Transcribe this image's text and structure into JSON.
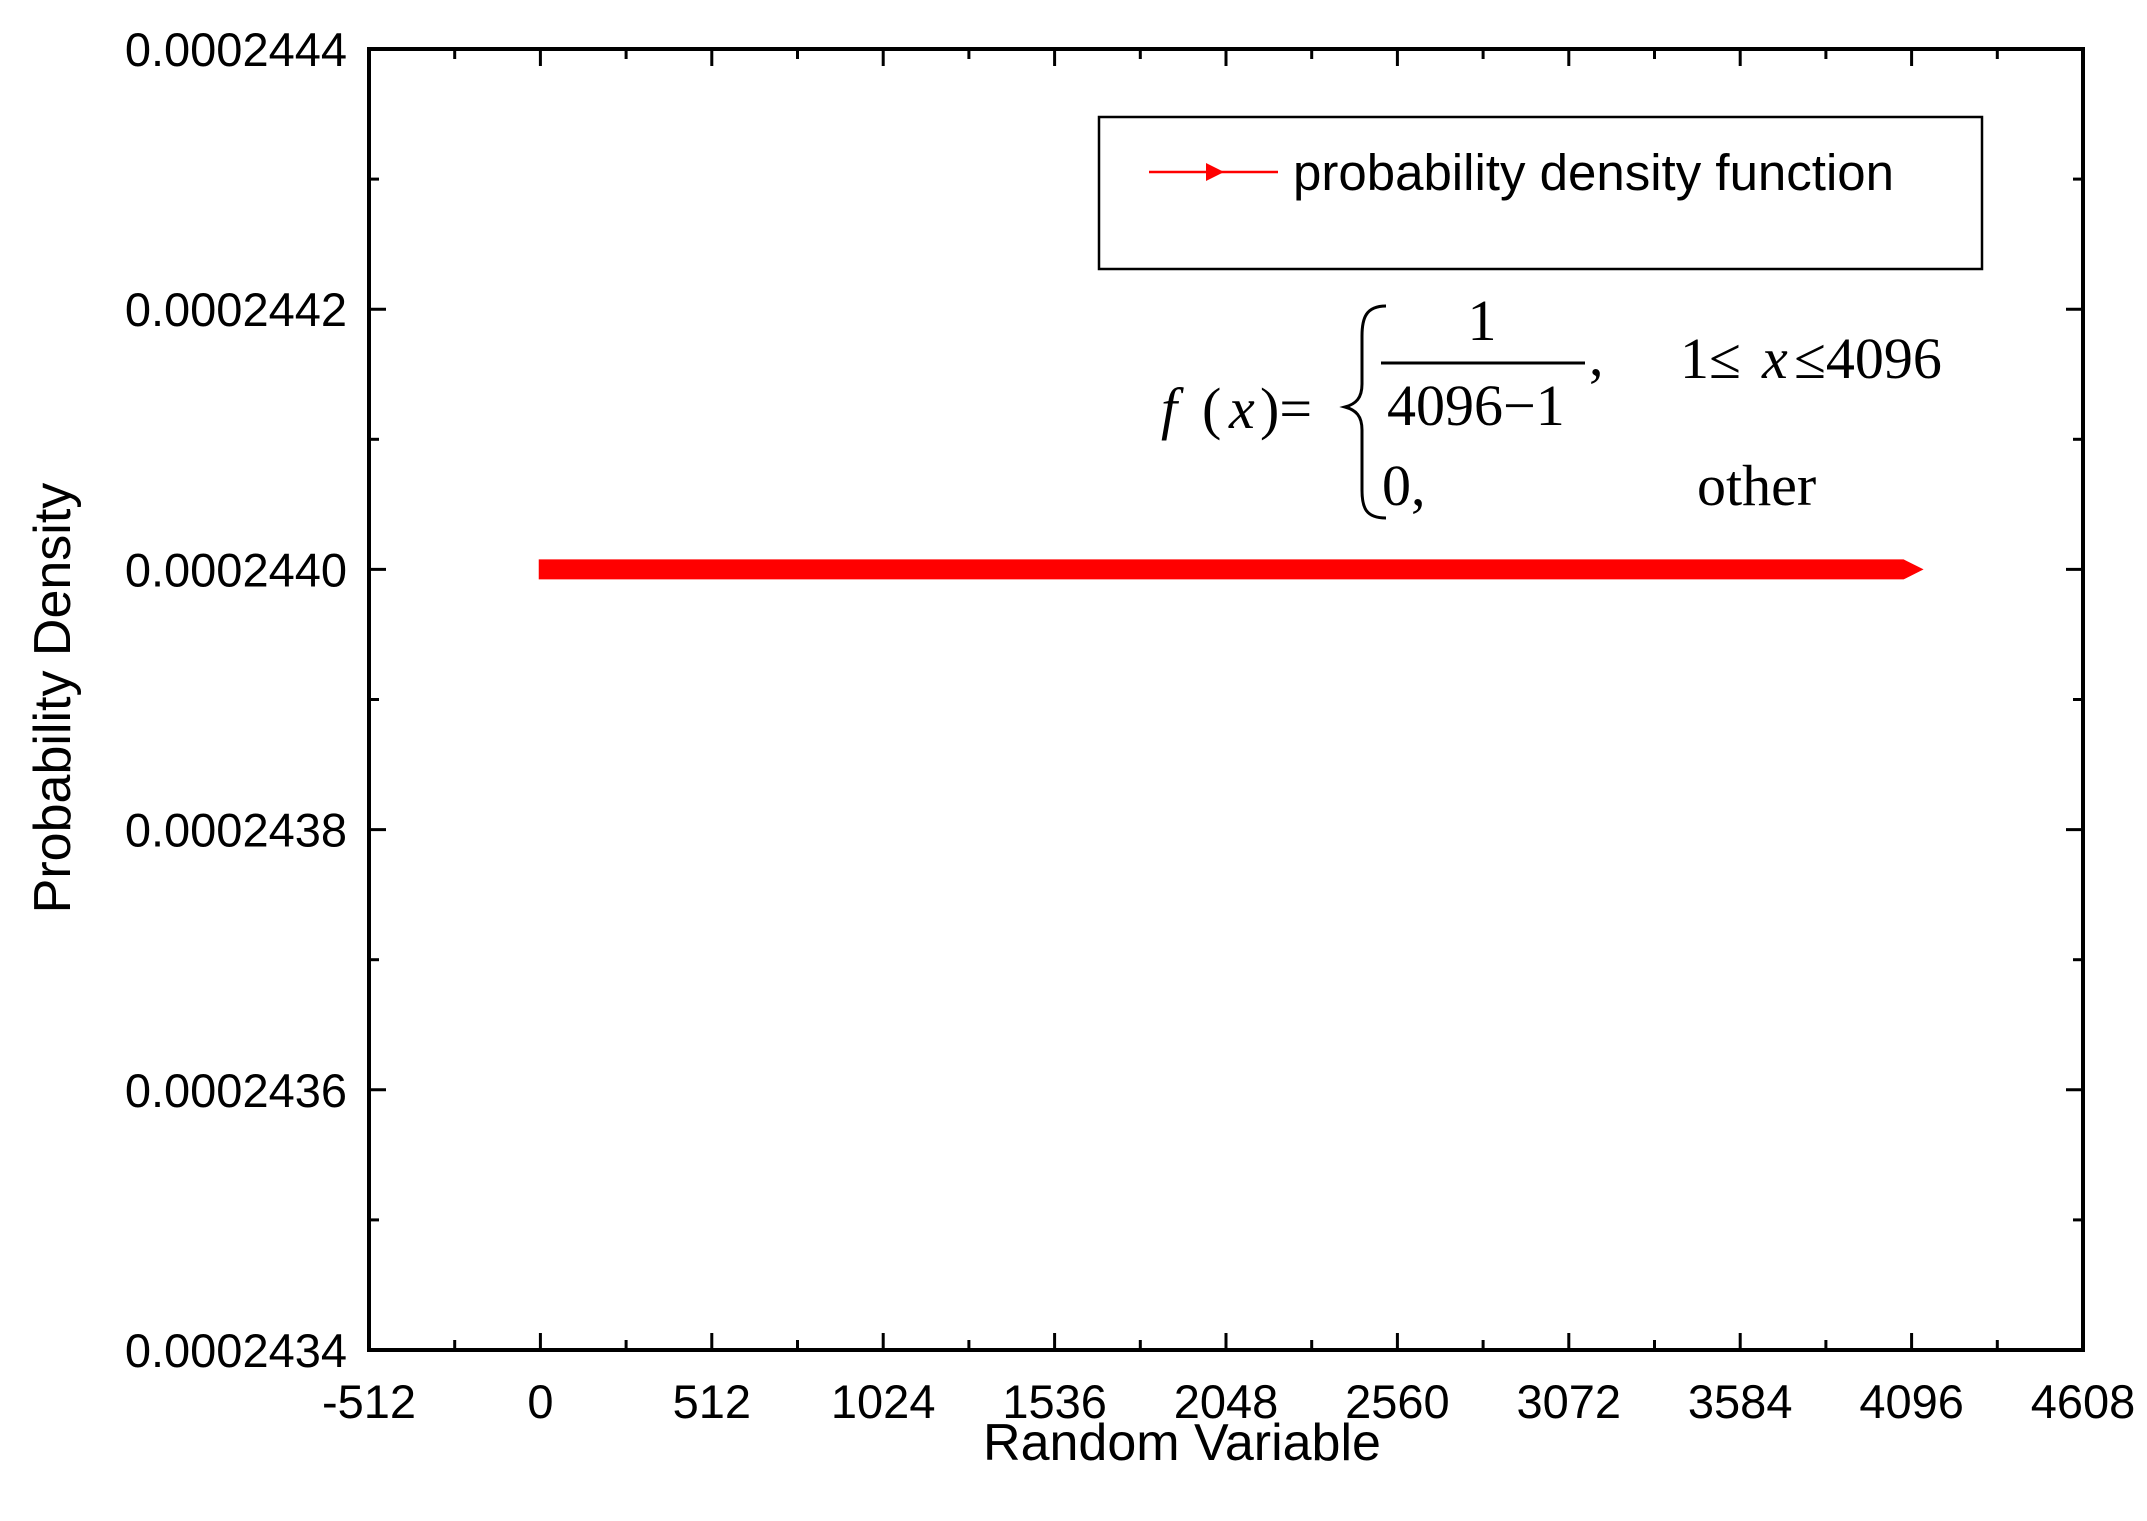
{
  "chart_data": {
    "type": "line",
    "title": "",
    "xlabel": "Random Variable",
    "ylabel": "Probability Density",
    "xlim": [
      -512,
      4608
    ],
    "ylim": [
      0.0002434,
      0.0002444
    ],
    "x_ticks": [
      -512,
      0,
      512,
      1024,
      1536,
      2048,
      2560,
      3072,
      3584,
      4096,
      4608
    ],
    "x_tick_labels": [
      "-512",
      "0",
      "512",
      "1024",
      "1536",
      "2048",
      "2560",
      "3072",
      "3584",
      "4096",
      "4608"
    ],
    "y_ticks": [
      0.0002434,
      0.0002436,
      0.0002438,
      0.000244,
      0.0002442,
      0.0002444
    ],
    "y_tick_labels": [
      "0.0002434",
      "0.0002436",
      "0.0002438",
      "0.0002440",
      "0.0002442",
      "0.0002444"
    ],
    "grid": false,
    "legend_position": "top-right",
    "series": [
      {
        "name": "probability density function",
        "color": "#ff0000",
        "x": [
          1,
          4096
        ],
        "y": [
          0.000244,
          0.000244
        ]
      }
    ],
    "annotation": {
      "lhs_f": "f",
      "lhs_open": "(",
      "lhs_x": "x",
      "lhs_close_eq": ")=",
      "numerator": "1",
      "denominator": "4096−1",
      "comma": ",",
      "cond_1": "1≤",
      "cond_x": "x",
      "cond_2": "≤4096",
      "zero": "0,",
      "other": "other"
    }
  }
}
